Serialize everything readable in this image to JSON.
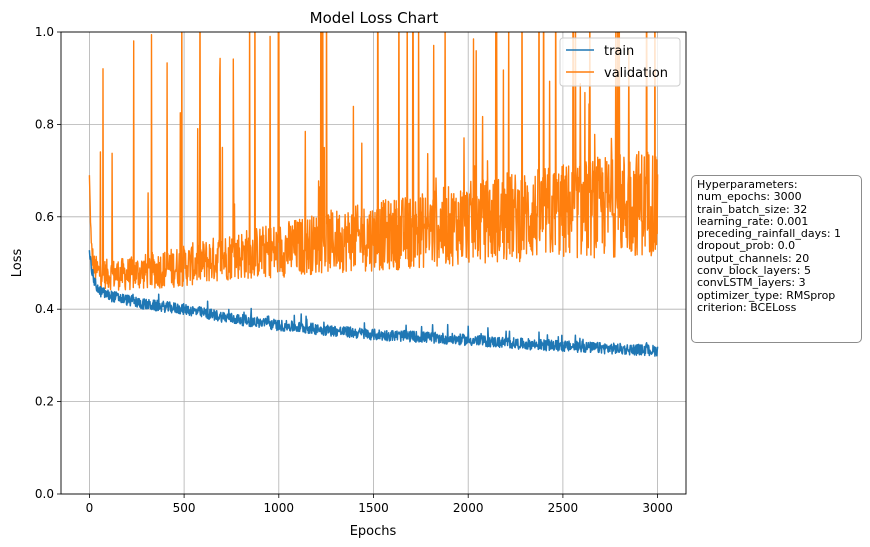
{
  "chart_data": {
    "type": "line",
    "title": "Model Loss Chart",
    "xlabel": "Epochs",
    "ylabel": "Loss",
    "xlim": [
      -150,
      3150
    ],
    "ylim": [
      0.0,
      1.0
    ],
    "x_ticks": [
      0,
      500,
      1000,
      1500,
      2000,
      2500,
      3000
    ],
    "y_ticks": [
      0.0,
      0.2,
      0.4,
      0.6,
      0.8,
      1.0
    ],
    "x_tick_labels": [
      "0",
      "500",
      "1000",
      "1500",
      "2000",
      "2500",
      "3000"
    ],
    "y_tick_labels": [
      "0.0",
      "0.2",
      "0.4",
      "0.6",
      "0.8",
      "1.0"
    ],
    "grid": true,
    "legend_position": "upper right",
    "series": [
      {
        "name": "train",
        "color": "#1f77b4",
        "x": [
          0,
          10,
          25,
          50,
          100,
          200,
          300,
          500,
          750,
          1000,
          1250,
          1500,
          1750,
          2000,
          2250,
          2500,
          2750,
          3000
        ],
        "values": [
          0.53,
          0.49,
          0.46,
          0.44,
          0.43,
          0.42,
          0.41,
          0.4,
          0.38,
          0.365,
          0.355,
          0.345,
          0.34,
          0.333,
          0.326,
          0.32,
          0.315,
          0.31
        ]
      },
      {
        "name": "validation",
        "color": "#ff7f0e",
        "x": [
          0,
          10,
          25,
          50,
          100,
          200,
          300,
          500,
          750,
          1000,
          1250,
          1500,
          1750,
          2000,
          2250,
          2500,
          2750,
          3000
        ],
        "values": [
          0.69,
          0.52,
          0.48,
          0.47,
          0.465,
          0.465,
          0.47,
          0.48,
          0.5,
          0.51,
          0.525,
          0.535,
          0.545,
          0.56,
          0.57,
          0.58,
          0.59,
          0.6
        ]
      }
    ]
  },
  "hyperparameters": {
    "lines": [
      "Hyperparameters:",
      "num_epochs: 3000",
      "train_batch_size: 32",
      "learning_rate: 0.001",
      "preceding_rainfall_days: 1",
      "dropout_prob: 0.0",
      "output_channels: 20",
      "conv_block_layers: 5",
      "convLSTM_layers: 3",
      "optimizer_type: RMSprop",
      "criterion: BCELoss"
    ]
  }
}
